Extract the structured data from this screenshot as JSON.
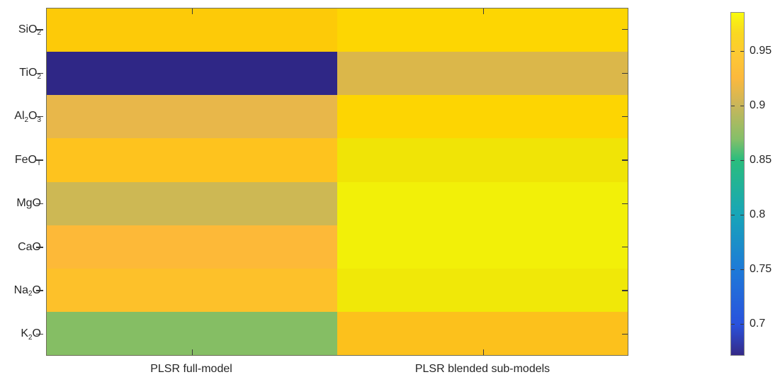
{
  "chart_data": {
    "type": "heatmap",
    "columns": [
      "PLSR full-model",
      "PLSR blended sub-models"
    ],
    "rows": [
      {
        "name": "SiO2",
        "label": [
          {
            "t": "SiO"
          },
          {
            "t": "2",
            "sub": true
          }
        ],
        "values": [
          0.95,
          0.96
        ],
        "colors": [
          "#fdca08",
          "#fdd602"
        ]
      },
      {
        "name": "TiO2",
        "label": [
          {
            "t": "TiO"
          },
          {
            "t": "2",
            "sub": true
          }
        ],
        "values": [
          0.67,
          0.9
        ],
        "colors": [
          "#2f2786",
          "#dbb74a"
        ]
      },
      {
        "name": "Al2O3",
        "label": [
          {
            "t": "Al"
          },
          {
            "t": "2",
            "sub": true
          },
          {
            "t": "O"
          },
          {
            "t": "3",
            "sub": true
          }
        ],
        "values": [
          0.91,
          0.96
        ],
        "colors": [
          "#e8b74a",
          "#fdd502"
        ]
      },
      {
        "name": "FeOT",
        "label": [
          {
            "t": "FeO"
          },
          {
            "t": "T",
            "sub": true
          }
        ],
        "values": [
          0.94,
          0.97
        ],
        "colors": [
          "#fec31e",
          "#f0e406"
        ]
      },
      {
        "name": "MgO",
        "label": [
          {
            "t": "MgO"
          }
        ],
        "values": [
          0.89,
          0.98
        ],
        "colors": [
          "#cdb854",
          "#f2f008"
        ]
      },
      {
        "name": "CaO",
        "label": [
          {
            "t": "CaO"
          }
        ],
        "values": [
          0.93,
          0.98
        ],
        "colors": [
          "#fdb938",
          "#f2f008"
        ]
      },
      {
        "name": "Na2O",
        "label": [
          {
            "t": "Na"
          },
          {
            "t": "2",
            "sub": true
          },
          {
            "t": "O"
          }
        ],
        "values": [
          0.93,
          0.97
        ],
        "colors": [
          "#fdc12a",
          "#f0e808"
        ]
      },
      {
        "name": "K2O",
        "label": [
          {
            "t": "K"
          },
          {
            "t": "2",
            "sub": true
          },
          {
            "t": "O"
          }
        ],
        "values": [
          0.87,
          0.94
        ],
        "colors": [
          "#85be64",
          "#fcc11c"
        ]
      }
    ],
    "colorbar": {
      "colormap": "parula",
      "tick_labels": [
        "0.95",
        "0.9",
        "0.85",
        "0.8",
        "0.75",
        "0.7"
      ],
      "tick_values": [
        0.95,
        0.9,
        0.85,
        0.8,
        0.75,
        0.7
      ],
      "range": [
        0.671,
        0.986
      ],
      "gradient_stops": [
        {
          "pos": 0.0,
          "color": "#352a87"
        },
        {
          "pos": 0.09,
          "color": "#2a52dd"
        },
        {
          "pos": 0.25,
          "color": "#1e7ad8"
        },
        {
          "pos": 0.41,
          "color": "#18a5b8"
        },
        {
          "pos": 0.57,
          "color": "#2abd7d"
        },
        {
          "pos": 0.63,
          "color": "#84bf69"
        },
        {
          "pos": 0.73,
          "color": "#cab65a"
        },
        {
          "pos": 0.81,
          "color": "#fcb93d"
        },
        {
          "pos": 0.875,
          "color": "#fdc835"
        },
        {
          "pos": 0.94,
          "color": "#f9d821"
        },
        {
          "pos": 1.0,
          "color": "#f9fb0e"
        }
      ]
    },
    "legend": null,
    "grid": false
  },
  "colors": {
    "text": "#262626",
    "axis_border": "#6e6e58",
    "tick": "#3a3a3a"
  }
}
